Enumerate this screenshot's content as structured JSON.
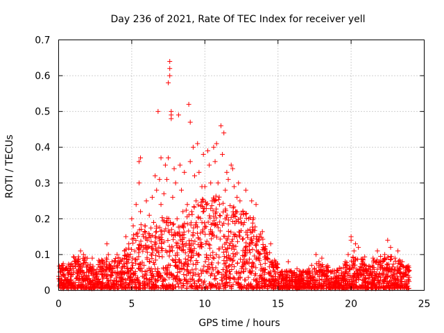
{
  "chart_data": {
    "type": "scatter",
    "title": "Day 236 of 2021, Rate Of TEC Index for receiver yell",
    "xlabel": "GPS time / hours",
    "ylabel": "ROTI / TECUs",
    "xlim": [
      0,
      25
    ],
    "ylim": [
      0,
      0.7
    ],
    "x_ticks": [
      0,
      5,
      10,
      15,
      20,
      25
    ],
    "y_ticks": [
      0,
      0.1,
      0.2,
      0.3,
      0.4,
      0.5,
      0.6,
      0.7
    ],
    "x_tick_labels": [
      "0",
      "5",
      "10",
      "15",
      "20",
      "25"
    ],
    "y_tick_labels": [
      "0",
      "0.1",
      "0.2",
      "0.3",
      "0.4",
      "0.5",
      "0.6",
      "0.7"
    ],
    "grid": true,
    "marker": "+",
    "marker_color": "#ff0000",
    "series": [
      {
        "x": [
          0.1,
          0.2,
          0.3,
          0.4,
          0.5,
          0.7,
          0.8,
          1.0,
          1.2,
          1.5,
          1.6,
          1.7,
          1.8,
          2.0,
          2.3,
          2.5,
          2.8,
          3.0,
          3.3,
          3.4,
          3.5,
          3.7,
          4.0,
          4.2,
          4.5,
          4.6,
          4.8,
          5.0,
          5.1,
          5.3,
          5.4,
          5.5,
          5.5,
          5.6,
          5.6,
          5.8,
          5.9,
          6.0,
          6.1,
          6.2,
          6.3,
          6.4,
          6.5,
          6.6,
          6.7,
          6.8,
          6.9,
          7.0,
          7.0,
          7.2,
          7.3,
          7.4,
          7.5,
          7.5,
          7.6,
          7.6,
          7.6,
          7.7,
          7.7,
          7.7,
          7.8,
          7.9,
          8.0,
          8.1,
          8.2,
          8.3,
          8.4,
          8.5,
          8.6,
          8.8,
          8.9,
          9.0,
          9.0,
          9.1,
          9.2,
          9.3,
          9.4,
          9.5,
          9.6,
          9.7,
          9.8,
          9.9,
          10.0,
          10.1,
          10.2,
          10.3,
          10.4,
          10.5,
          10.6,
          10.7,
          10.8,
          10.9,
          11.0,
          11.1,
          11.2,
          11.3,
          11.4,
          11.5,
          11.6,
          11.8,
          11.9,
          12.0,
          12.1,
          12.2,
          12.3,
          12.4,
          12.5,
          12.6,
          12.8,
          13.0,
          13.2,
          13.3,
          13.5,
          13.7,
          14.0,
          14.2,
          14.5,
          14.8,
          15.0,
          15.3,
          15.7,
          16.0,
          16.3,
          16.6,
          17.0,
          17.3,
          17.6,
          17.8,
          18.0,
          18.5,
          19.0,
          19.3,
          19.6,
          19.8,
          20.0,
          20.0,
          20.2,
          20.3,
          20.5,
          20.8,
          21.0,
          21.2,
          21.5,
          21.8,
          22.0,
          22.3,
          22.5,
          22.7,
          23.0,
          23.2,
          23.5,
          23.7,
          23.9
        ],
        "y": [
          0.05,
          0.04,
          0.07,
          0.03,
          0.06,
          0.05,
          0.03,
          0.06,
          0.08,
          0.11,
          0.05,
          0.1,
          0.04,
          0.07,
          0.09,
          0.05,
          0.08,
          0.06,
          0.13,
          0.1,
          0.07,
          0.05,
          0.1,
          0.08,
          0.11,
          0.15,
          0.13,
          0.2,
          0.18,
          0.24,
          0.16,
          0.3,
          0.36,
          0.37,
          0.22,
          0.15,
          0.18,
          0.25,
          0.12,
          0.21,
          0.15,
          0.26,
          0.19,
          0.32,
          0.28,
          0.5,
          0.31,
          0.37,
          0.24,
          0.27,
          0.35,
          0.31,
          0.37,
          0.58,
          0.6,
          0.62,
          0.64,
          0.48,
          0.49,
          0.5,
          0.26,
          0.34,
          0.3,
          0.2,
          0.49,
          0.35,
          0.28,
          0.22,
          0.33,
          0.24,
          0.52,
          0.36,
          0.47,
          0.22,
          0.4,
          0.32,
          0.25,
          0.41,
          0.33,
          0.16,
          0.29,
          0.38,
          0.29,
          0.24,
          0.39,
          0.35,
          0.3,
          0.25,
          0.4,
          0.36,
          0.41,
          0.3,
          0.24,
          0.46,
          0.38,
          0.44,
          0.28,
          0.33,
          0.31,
          0.35,
          0.34,
          0.29,
          0.22,
          0.26,
          0.3,
          0.25,
          0.19,
          0.22,
          0.28,
          0.2,
          0.25,
          0.17,
          0.24,
          0.14,
          0.12,
          0.09,
          0.13,
          0.07,
          0.05,
          0.04,
          0.08,
          0.03,
          0.06,
          0.04,
          0.05,
          0.07,
          0.1,
          0.08,
          0.09,
          0.03,
          0.04,
          0.06,
          0.08,
          0.1,
          0.14,
          0.15,
          0.11,
          0.13,
          0.12,
          0.08,
          0.07,
          0.06,
          0.09,
          0.11,
          0.08,
          0.1,
          0.14,
          0.12,
          0.09,
          0.11,
          0.08,
          0.05,
          0.03
        ]
      }
    ],
    "dense_band": {
      "x": [
        0,
        0.5,
        1,
        1.5,
        2,
        2.5,
        3,
        3.5,
        4,
        4.5,
        5,
        5.5,
        6,
        6.5,
        7,
        7.5,
        8,
        8.5,
        9,
        9.5,
        10,
        10.5,
        11,
        11.5,
        12,
        12.5,
        13,
        13.5,
        14,
        14.5,
        15,
        15.5,
        16,
        16.5,
        17,
        17.5,
        18,
        18.5,
        19,
        19.5,
        20,
        20.5,
        21,
        21.5,
        22,
        22.5,
        23,
        23.5,
        24
      ],
      "y": [
        0.06,
        0.07,
        0.06,
        0.09,
        0.07,
        0.07,
        0.08,
        0.09,
        0.08,
        0.09,
        0.12,
        0.16,
        0.18,
        0.17,
        0.2,
        0.2,
        0.18,
        0.19,
        0.22,
        0.23,
        0.25,
        0.24,
        0.26,
        0.24,
        0.23,
        0.22,
        0.2,
        0.16,
        0.12,
        0.08,
        0.05,
        0.05,
        0.05,
        0.05,
        0.05,
        0.06,
        0.07,
        0.05,
        0.05,
        0.06,
        0.08,
        0.09,
        0.07,
        0.06,
        0.08,
        0.09,
        0.08,
        0.07,
        0.05
      ]
    }
  }
}
